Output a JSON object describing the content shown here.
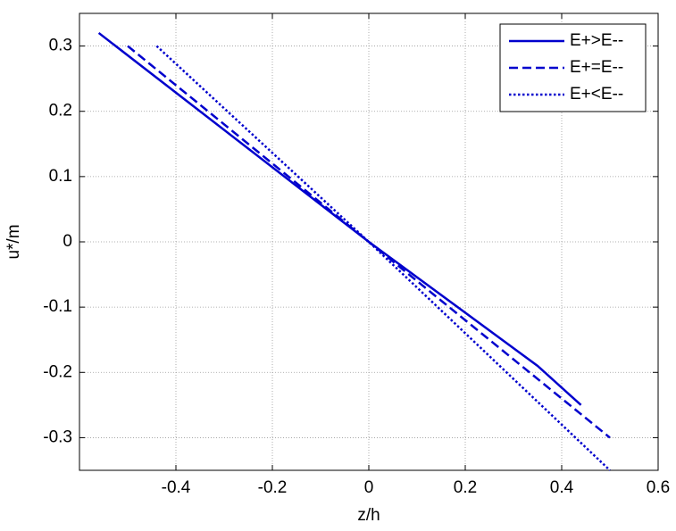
{
  "chart_data": {
    "type": "line",
    "x_label": "z/h",
    "y_label": "u*/m",
    "xlim": [
      -0.6,
      0.6
    ],
    "xticks": [
      -0.4,
      -0.2,
      0,
      0.2,
      0.4,
      0.6
    ],
    "ylim": [
      -0.35,
      0.35
    ],
    "yticks": [
      -0.3,
      -0.2,
      -0.1,
      0,
      0.1,
      0.2,
      0.3
    ],
    "grid": true,
    "legend": "top-right",
    "series": [
      {
        "name": "E+>E--",
        "color": "#0000cd",
        "style": "solid",
        "x": [
          -0.56,
          0,
          0.35,
          0.44
        ],
        "values": [
          0.32,
          0,
          -0.19,
          -0.25
        ]
      },
      {
        "name": "E+=E--",
        "color": "#0000cd",
        "style": "dashed",
        "x": [
          -0.5,
          0,
          0.5
        ],
        "values": [
          0.3,
          0,
          -0.3
        ]
      },
      {
        "name": "E+<E--",
        "color": "#0000cd",
        "style": "dotted",
        "x": [
          -0.44,
          0,
          0.5
        ],
        "values": [
          0.3,
          0,
          -0.35
        ]
      }
    ]
  }
}
